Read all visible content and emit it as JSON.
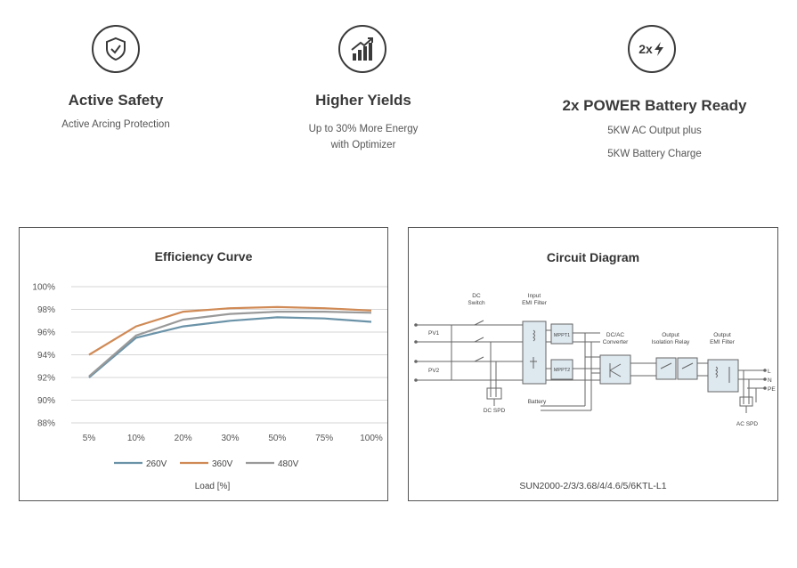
{
  "features": [
    {
      "title": "Active Safety",
      "lines": [
        "Active Arcing Protection"
      ],
      "icon": "shield-check-icon"
    },
    {
      "title": "Higher Yields",
      "lines": [
        "Up to 30% More  Energy",
        "with Optimizer"
      ],
      "icon": "bar-chart-up-icon"
    },
    {
      "title": "2x POWER Battery Ready",
      "lines": [
        "5KW AC Output plus",
        "5KW Battery Charge"
      ],
      "icon": "double-power-icon",
      "icon_text": "2x"
    }
  ],
  "efficiency_panel": {
    "title": "Efficiency Curve"
  },
  "circuit_panel": {
    "title": "Circuit Diagram",
    "model": "SUN2000-2/3/3.68/4/4.6/5/6KTL-L1",
    "labels": {
      "dc_switch": [
        "DC",
        "Switch"
      ],
      "input_filter": [
        "Input",
        "EMI Filter"
      ],
      "pv1": "PV1",
      "pv2": "PV2",
      "mppt1": "MPPT1",
      "mppt2": "MPPT2",
      "dcac": [
        "DC/AC",
        "Converter"
      ],
      "relay": [
        "Output",
        "Isolation Relay"
      ],
      "output_filter": [
        "Output",
        "EMI Filter"
      ],
      "battery": "Battery",
      "dc_spd": "DC SPD",
      "ac_spd": "AC SPD",
      "L": "L",
      "N": "N",
      "PE": "PE"
    }
  },
  "chart_data": {
    "type": "line",
    "title": "Efficiency Curve",
    "xlabel": "Load [%]",
    "ylabel": "",
    "categories": [
      "5%",
      "10%",
      "20%",
      "30%",
      "50%",
      "75%",
      "100%"
    ],
    "y_ticks": [
      "88%",
      "90%",
      "92%",
      "94%",
      "96%",
      "98%",
      "100%"
    ],
    "ylim": [
      88,
      100
    ],
    "grid": true,
    "legend_position": "bottom",
    "series": [
      {
        "name": "260V",
        "color": "#6b93a8",
        "values": [
          92.0,
          95.5,
          96.5,
          97.0,
          97.3,
          97.2,
          96.9
        ]
      },
      {
        "name": "360V",
        "color": "#d08a55",
        "values": [
          94.0,
          96.5,
          97.8,
          98.1,
          98.2,
          98.1,
          97.9
        ]
      },
      {
        "name": "480V",
        "color": "#9a9a9a",
        "values": [
          92.1,
          95.7,
          97.1,
          97.6,
          97.8,
          97.8,
          97.7
        ]
      }
    ]
  }
}
